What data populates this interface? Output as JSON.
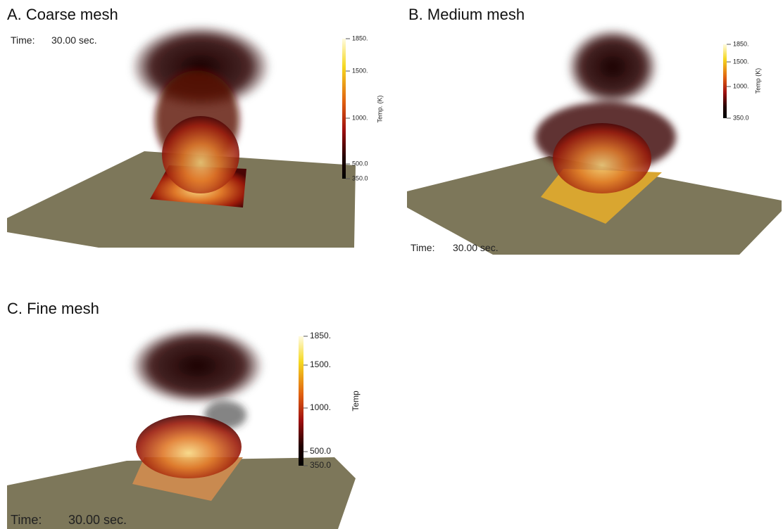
{
  "panels": [
    {
      "title": "A. Coarse mesh",
      "time_label": "Time:",
      "time_value": "30.00 sec.",
      "colorbar_label": "Temp. (K)",
      "colorbar_ticks": [
        "1850.",
        "1500.",
        "1000.",
        "500.0",
        "350.0"
      ]
    },
    {
      "title": "B. Medium mesh",
      "time_label": "Time:",
      "time_value": "30.00 sec.",
      "colorbar_label": "Temp (K)",
      "colorbar_ticks": [
        "1850.",
        "1500.",
        "1000.",
        "350.0"
      ]
    },
    {
      "title": "C. Fine mesh",
      "time_label": "Time:",
      "time_value": "30.00 sec.",
      "colorbar_label": "Temp",
      "colorbar_ticks": [
        "1850.",
        "1500.",
        "1000.",
        "500.0",
        "350.0"
      ]
    }
  ]
}
